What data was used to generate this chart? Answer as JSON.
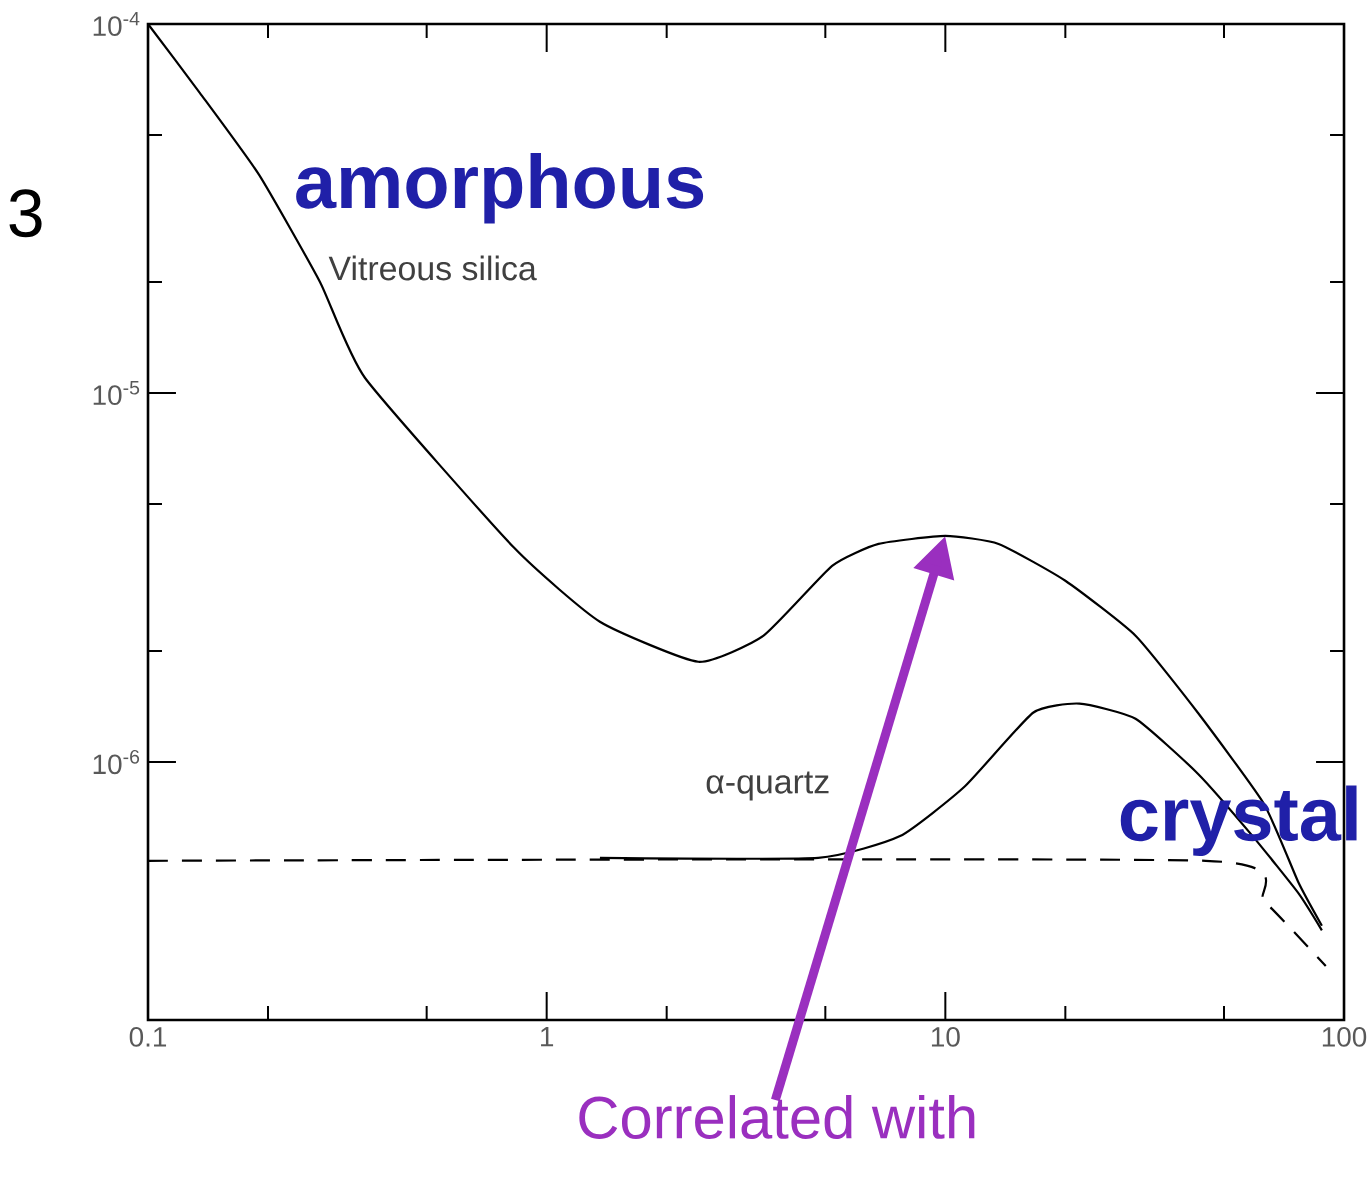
{
  "chart_data": {
    "type": "line",
    "log": "xy",
    "grid": false,
    "legend": false,
    "xlim": [
      0.1,
      100
    ],
    "ylim": [
      2e-07,
      0.0001
    ],
    "xticks": [
      0.1,
      1,
      10,
      100
    ],
    "yticks": [
      {
        "value": 1e-06,
        "label": "10$^{-6}$"
      },
      {
        "value": 1e-05,
        "label": "10$^{-5}$"
      },
      {
        "value": 0.0001,
        "label": "10$^{-4}$"
      }
    ],
    "annotations": [
      "Correlated with",
      "amorphous",
      "crystal",
      "3"
    ],
    "series": [
      {
        "name": "Vitreous silica",
        "color": "#000000",
        "line_style": "solid",
        "x": [
          0.1,
          0.135,
          0.19,
          0.27,
          0.35,
          0.83,
          1.36,
          2.4,
          3.5,
          5.2,
          6.8,
          10,
          13.6,
          20,
          30,
          43,
          63,
          77,
          88
        ],
        "values": [
          0.0001,
          6.5e-05,
          3.9e-05,
          2e-05,
          1.1e-05,
          3.8e-06,
          2.4e-06,
          1.87e-06,
          2.2e-06,
          3.4e-06,
          3.9e-06,
          4.1e-06,
          3.9e-06,
          3.1e-06,
          2.2e-06,
          1.36e-06,
          7.7e-07,
          4.7e-07,
          3.6e-07
        ]
      },
      {
        "name": "α-quartz",
        "color": "#000000",
        "line_style": "solid",
        "x": [
          1.36,
          4.8,
          7.7,
          11.2,
          16.6,
          21.7,
          30,
          43,
          59,
          77,
          88
        ],
        "values": [
          5.5e-07,
          5.5e-07,
          6.3e-07,
          8.6e-07,
          1.36e-06,
          1.44e-06,
          1.31e-06,
          9.3e-07,
          6.3e-07,
          4.4e-07,
          3.5e-07
        ]
      },
      {
        "color": "#000000",
        "line_style": "dashed",
        "x": [
          0.1,
          45,
          63,
          90
        ],
        "values": [
          5.4e-07,
          5.4e-07,
          4.2e-07,
          2.8e-07
        ]
      }
    ]
  }
}
